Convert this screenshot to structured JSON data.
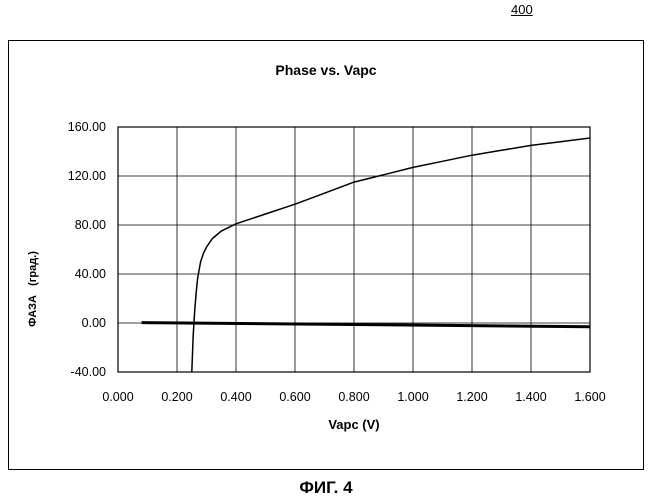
{
  "header": {
    "ref_number": "400"
  },
  "figure": {
    "caption": "ФИГ. 4"
  },
  "chart_data": {
    "type": "line",
    "title": "Phase vs. Vapc",
    "xlabel": "Vapc (V)",
    "ylabel": "ФАЗА   (град.)",
    "xlim": [
      0.0,
      1.6
    ],
    "ylim": [
      -40,
      160
    ],
    "x_ticks": [
      "0.000",
      "0.200",
      "0.400",
      "0.600",
      "0.800",
      "1.000",
      "1.200",
      "1.400",
      "1.600"
    ],
    "y_ticks": [
      "160.00",
      "120.00",
      "80.00",
      "40.00",
      "0.00",
      "-40.00"
    ],
    "grid": true,
    "legend": "none",
    "series": [
      {
        "x": [
          0.25,
          0.255,
          0.26,
          0.265,
          0.27,
          0.28,
          0.29,
          0.3,
          0.32,
          0.35,
          0.4,
          0.5,
          0.6,
          0.7,
          0.8,
          0.9,
          1.0,
          1.1,
          1.2,
          1.3,
          1.4,
          1.5,
          1.6
        ],
        "y": [
          -40,
          -10,
          10,
          25,
          37,
          50,
          57,
          62,
          69,
          75,
          81,
          89,
          97,
          106,
          115,
          121,
          127,
          132,
          137,
          141,
          145,
          148,
          151
        ],
        "color": "#000000"
      },
      {
        "x": [
          0.08,
          1.6
        ],
        "y": [
          0.3,
          -3
        ],
        "color": "#000000",
        "thick": true
      }
    ]
  }
}
